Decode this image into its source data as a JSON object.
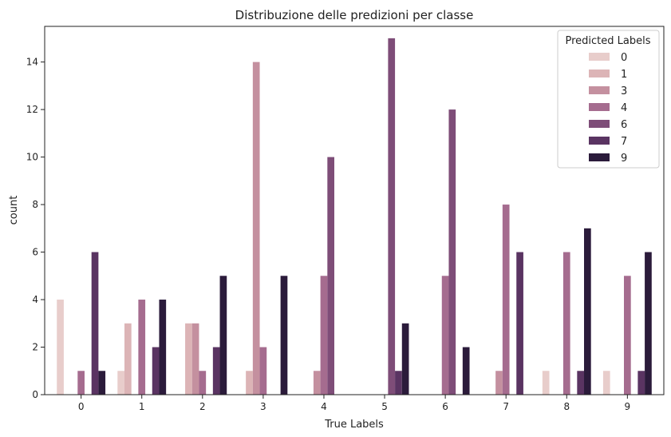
{
  "chart_data": {
    "type": "bar",
    "title": "Distribuzione delle predizioni per classe",
    "xlabel": "True Labels",
    "ylabel": "count",
    "categories": [
      "0",
      "1",
      "2",
      "3",
      "4",
      "5",
      "6",
      "7",
      "8",
      "9"
    ],
    "ylim": [
      0,
      15.5
    ],
    "yticks": [
      0,
      2,
      4,
      6,
      8,
      10,
      12,
      14
    ],
    "legend": {
      "title": "Predicted Labels",
      "position": "top-right"
    },
    "series": [
      {
        "name": "0",
        "color": "#e8cdcb",
        "values": [
          4,
          1,
          0,
          0,
          0,
          0,
          0,
          0,
          1,
          1
        ]
      },
      {
        "name": "1",
        "color": "#dcb4b6",
        "values": [
          0,
          3,
          3,
          1,
          0,
          0,
          0,
          0,
          0,
          0
        ]
      },
      {
        "name": "3",
        "color": "#c4909f",
        "values": [
          0,
          0,
          3,
          14,
          1,
          0,
          0,
          1,
          0,
          0
        ]
      },
      {
        "name": "4",
        "color": "#a56c8f",
        "values": [
          1,
          4,
          1,
          2,
          5,
          0,
          5,
          8,
          6,
          5
        ]
      },
      {
        "name": "6",
        "color": "#7e4d78",
        "values": [
          0,
          0,
          0,
          0,
          10,
          15,
          12,
          0,
          0,
          0
        ]
      },
      {
        "name": "7",
        "color": "#5a3462",
        "values": [
          6,
          2,
          2,
          0,
          0,
          1,
          0,
          6,
          1,
          1
        ]
      },
      {
        "name": "9",
        "color": "#2b1b3b",
        "values": [
          1,
          4,
          5,
          5,
          0,
          3,
          2,
          0,
          7,
          6
        ]
      }
    ]
  }
}
